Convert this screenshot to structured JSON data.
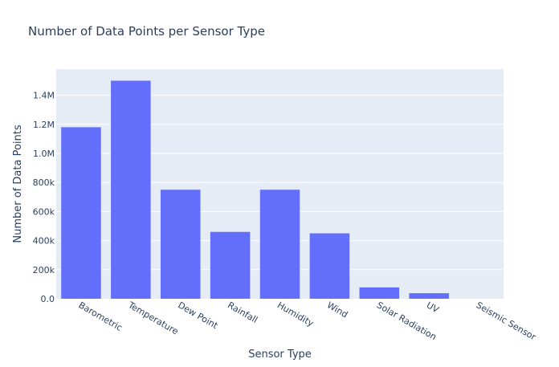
{
  "chart_data": {
    "type": "bar",
    "title": "Number of Data Points per Sensor Type",
    "xlabel": "Sensor Type",
    "ylabel": "Number of Data Points",
    "categories": [
      "Barometric",
      "Temperature",
      "Dew Point",
      "Rainfall",
      "Humidity",
      "Wind",
      "Solar Radiation",
      "UV",
      "Seismic Sensor"
    ],
    "values": [
      1180000,
      1500000,
      750000,
      460000,
      750000,
      450000,
      78000,
      38000,
      0
    ],
    "ylim": [
      0,
      1580000
    ],
    "yticks": [
      0,
      200000,
      400000,
      600000,
      800000,
      1000000,
      1200000,
      1400000
    ],
    "ytick_labels": [
      "0.0",
      "200k",
      "400k",
      "600k",
      "800k",
      "1.0M",
      "1.2M",
      "1.4M"
    ],
    "bar_color": "#636efa",
    "plot_bg": "#e5ecf6",
    "grid": true,
    "legend": "none"
  }
}
